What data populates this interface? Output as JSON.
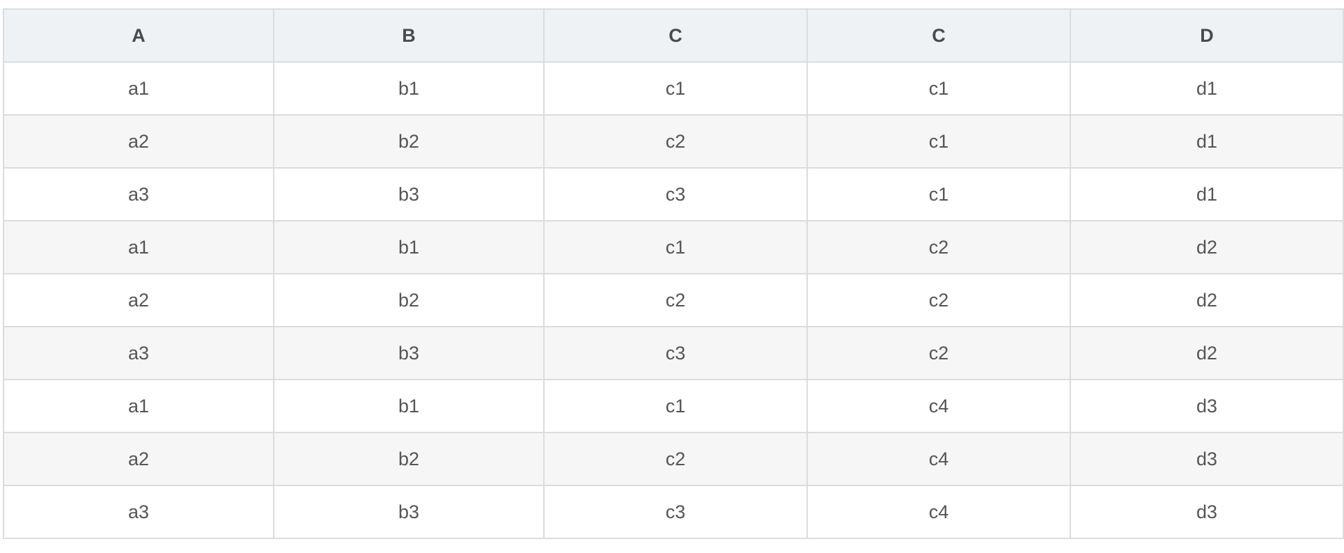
{
  "table": {
    "headers": [
      "A",
      "B",
      "C",
      "C",
      "D"
    ],
    "rows": [
      [
        "a1",
        "b1",
        "c1",
        "c1",
        "d1"
      ],
      [
        "a2",
        "b2",
        "c2",
        "c1",
        "d1"
      ],
      [
        "a3",
        "b3",
        "c3",
        "c1",
        "d1"
      ],
      [
        "a1",
        "b1",
        "c1",
        "c2",
        "d2"
      ],
      [
        "a2",
        "b2",
        "c2",
        "c2",
        "d2"
      ],
      [
        "a3",
        "b3",
        "c3",
        "c2",
        "d2"
      ],
      [
        "a1",
        "b1",
        "c1",
        "c4",
        "d3"
      ],
      [
        "a2",
        "b2",
        "c2",
        "c4",
        "d3"
      ],
      [
        "a3",
        "b3",
        "c3",
        "c4",
        "d3"
      ]
    ]
  },
  "colors": {
    "header_bg": "#eef2f5",
    "stripe_bg": "#f6f6f6",
    "border": "#dcdcdc",
    "text": "#555555"
  }
}
